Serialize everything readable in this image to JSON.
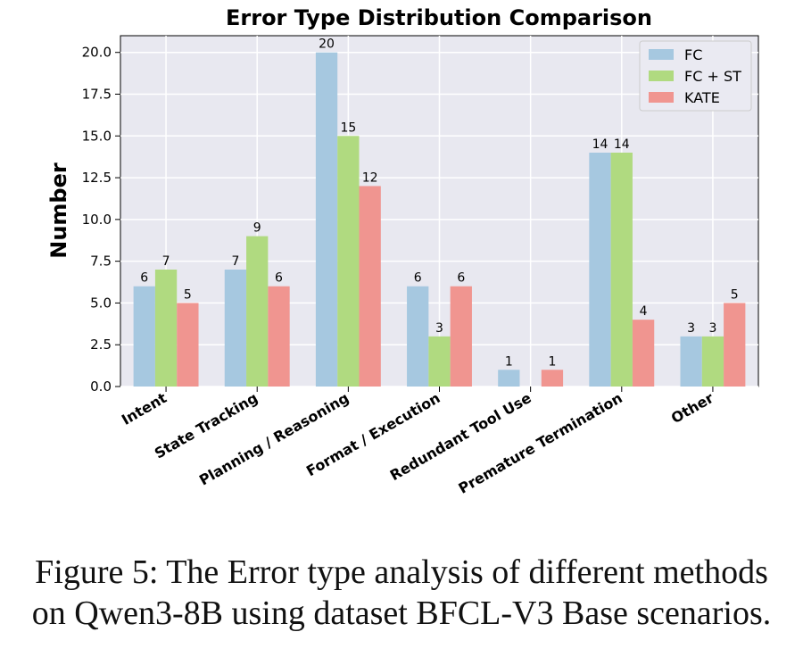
{
  "chart_data": {
    "type": "bar",
    "title": "Error Type Distribution Comparison",
    "xlabel": "",
    "ylabel": "Number",
    "categories": [
      "Intent",
      "State Tracking",
      "Planning / Reasoning",
      "Format / Execution",
      "Redundant Tool Use",
      "Premature Termination",
      "Other"
    ],
    "series": [
      {
        "name": "FC",
        "values": [
          6,
          7,
          20,
          6,
          1,
          14,
          3
        ],
        "color": "#a6c8e0"
      },
      {
        "name": "FC + ST",
        "values": [
          7,
          9,
          15,
          3,
          0,
          14,
          3
        ],
        "color": "#b0da80"
      },
      {
        "name": "KATE",
        "values": [
          5,
          6,
          12,
          6,
          1,
          4,
          5
        ],
        "color": "#f09590"
      }
    ],
    "ylim": [
      0,
      21
    ],
    "yticks": [
      "0.0",
      "2.5",
      "5.0",
      "7.5",
      "10.0",
      "12.5",
      "15.0",
      "17.5",
      "20.0"
    ],
    "grid": true,
    "legend": "top-right",
    "background": "#e8e8f0"
  },
  "caption": {
    "line1": "Figure 5: The Error type analysis of different methods",
    "line2": "on Qwen3-8B using dataset BFCL-V3 Base scenarios."
  }
}
